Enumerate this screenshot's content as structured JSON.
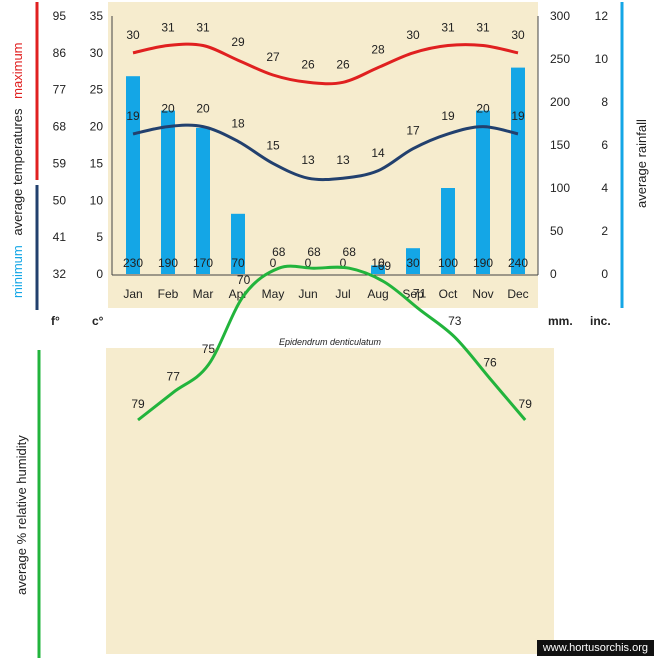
{
  "chart_data": [
    {
      "type": "bar+line",
      "caption": "Epidendrum denticulatum",
      "categories": [
        "Jan",
        "Feb",
        "Mar",
        "Apr",
        "May",
        "Jun",
        "Jul",
        "Aug",
        "Sep",
        "Oct",
        "Nov",
        "Dec"
      ],
      "series": [
        {
          "name": "maximum",
          "kind": "line",
          "color": "#e02020",
          "values": [
            30,
            31,
            31,
            29,
            27,
            26,
            26,
            28,
            30,
            31,
            31,
            30
          ]
        },
        {
          "name": "minimum",
          "kind": "line",
          "color": "#22406e",
          "values": [
            19,
            20,
            20,
            18,
            15,
            13,
            13,
            14,
            17,
            19,
            20,
            19
          ]
        },
        {
          "name": "rainfall",
          "kind": "bar",
          "color": "#14a6e6",
          "values": [
            230,
            190,
            170,
            70,
            0,
            0,
            0,
            10,
            30,
            100,
            190,
            240
          ]
        }
      ],
      "axes": {
        "celsius": {
          "ticks": [
            0,
            5,
            10,
            15,
            20,
            25,
            30,
            35
          ],
          "range": [
            0,
            35
          ],
          "unit": "c°"
        },
        "fahrenheit": {
          "ticks": [
            "32",
            "41",
            "50",
            "59",
            "68",
            "77",
            "86",
            "95"
          ],
          "unit": "f°"
        },
        "mm": {
          "ticks": [
            0,
            50,
            100,
            150,
            200,
            250,
            300
          ],
          "range": [
            0,
            300
          ],
          "unit": "mm."
        },
        "inches": {
          "ticks": [
            0,
            2,
            4,
            6,
            8,
            10,
            12
          ],
          "unit": "inc."
        }
      },
      "labels": {
        "left_top": "maximum",
        "left_mid": "average  temperatures",
        "left_bottom": "minimum",
        "right": "average  rainfall"
      }
    },
    {
      "type": "line",
      "categories": [
        "Jan",
        "Feb",
        "Mar",
        "Apr",
        "May",
        "Jun",
        "Jul",
        "Aug",
        "Sep",
        "Oct",
        "Nov",
        "Dec"
      ],
      "series": [
        {
          "name": "relative humidity",
          "color": "#22b43c",
          "values": [
            79,
            77,
            75,
            70,
            68,
            68,
            68,
            69,
            71,
            73,
            76,
            79
          ]
        }
      ],
      "ylabel": "average %  relative humidity"
    }
  ],
  "colors": {
    "max": "#e02020",
    "min": "#22406e",
    "bars": "#14a6e6",
    "humidity": "#22b43c",
    "bg": "#f6ecce"
  },
  "footer": "www.hortusorchis.org"
}
